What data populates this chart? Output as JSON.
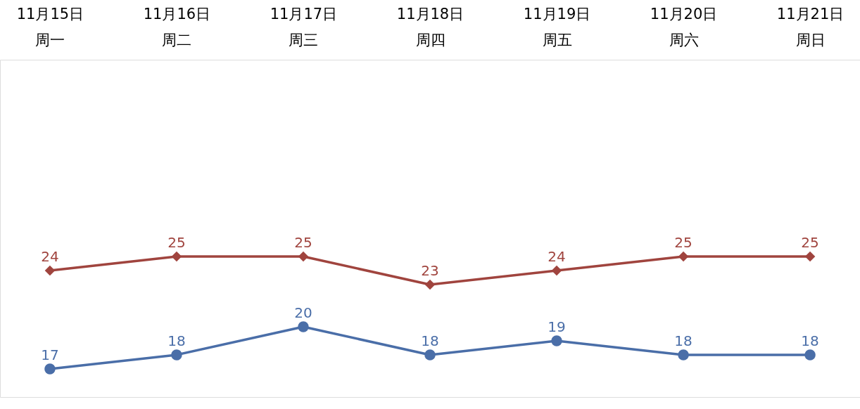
{
  "chart_data": {
    "type": "line",
    "categories": [
      "11月15日周一",
      "11月16日周二",
      "11月17日周三",
      "11月18日周四",
      "11月19日周五",
      "11月20日周六",
      "11月21日周日"
    ],
    "series": [
      {
        "color": "#a0443e",
        "marker": "diamond",
        "values": [
          24,
          25,
          25,
          23,
          24,
          25,
          25
        ]
      },
      {
        "color": "#4a6ea8",
        "marker": "circle",
        "values": [
          17,
          18,
          20,
          18,
          19,
          18,
          18
        ]
      }
    ],
    "ylim": [
      15,
      39
    ],
    "tick_labels": "x",
    "data_labels": true,
    "line_style": "solid"
  }
}
